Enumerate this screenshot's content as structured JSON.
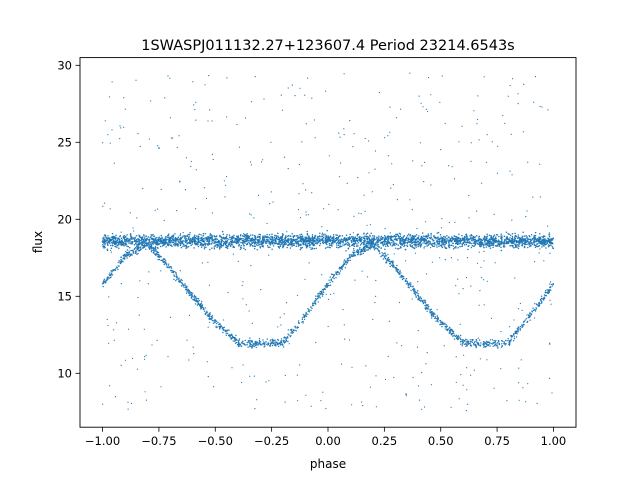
{
  "chart_data": {
    "type": "scatter",
    "title": "1SWASPJ011132.27+123607.4 Period 23214.6543s",
    "xlabel": "phase",
    "ylabel": "flux",
    "xlim": [
      -1.1,
      1.1
    ],
    "ylim": [
      6.5,
      30.5
    ],
    "xticks": [
      -1.0,
      -0.75,
      -0.5,
      -0.25,
      0.0,
      0.25,
      0.5,
      0.75,
      1.0
    ],
    "xtick_labels": [
      "−1.00",
      "−0.75",
      "−0.50",
      "−0.25",
      "0.00",
      "0.25",
      "0.50",
      "0.75",
      "1.00"
    ],
    "yticks": [
      10,
      15,
      20,
      25,
      30
    ],
    "ytick_labels": [
      "10",
      "15",
      "20",
      "25",
      "30"
    ],
    "grid": false,
    "legend": "none",
    "marker_color": "#1f77b4",
    "series": [
      {
        "description_points": "folded light curve, approximate sampled envelope",
        "baseline_band": {
          "x_range": [
            -1.0,
            1.0
          ],
          "y_center": 18.6,
          "y_halfwidth": 0.9
        },
        "eclipse_track": {
          "x": [
            -1.0,
            -0.9,
            -0.8,
            -0.7,
            -0.6,
            -0.5,
            -0.4,
            -0.3,
            -0.2,
            -0.1,
            0.0,
            0.1,
            0.2,
            0.3,
            0.4,
            0.5,
            0.6,
            0.7,
            0.8,
            0.9,
            1.0
          ],
          "y": [
            15.8,
            17.6,
            18.4,
            16.8,
            15.0,
            13.3,
            12.0,
            11.9,
            12.0,
            13.8,
            15.8,
            17.6,
            18.4,
            16.8,
            15.0,
            13.3,
            12.0,
            11.9,
            12.0,
            13.8,
            15.8
          ]
        },
        "outlier_y_range": [
          7.5,
          29.5
        ]
      }
    ]
  }
}
